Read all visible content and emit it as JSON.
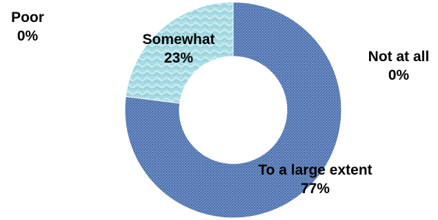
{
  "chart_data": {
    "type": "pie",
    "variant": "doughnut",
    "categories": [
      "To a large extent",
      "Somewhat",
      "Poor",
      "Not at all"
    ],
    "values": [
      77,
      23,
      0,
      0
    ],
    "value_labels": [
      "77%",
      "23%",
      "0%",
      "0%"
    ],
    "title": "",
    "legend": "none",
    "colors": [
      "#5b7db8",
      "#a8dbe4",
      "#c0504d",
      "#9bbb59"
    ]
  }
}
